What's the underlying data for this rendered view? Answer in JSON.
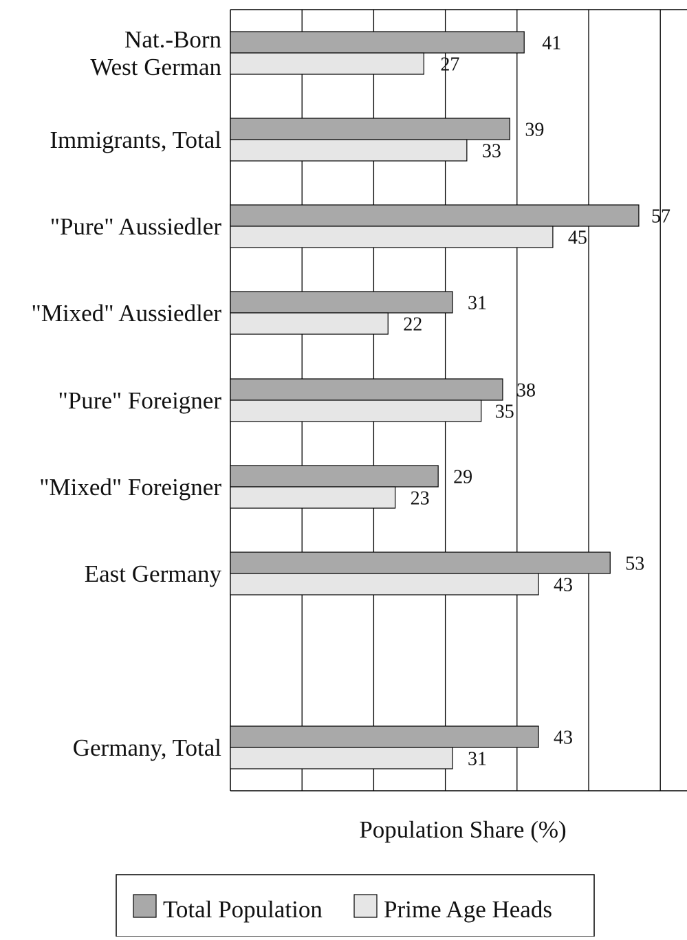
{
  "chart_data": {
    "type": "bar",
    "orientation": "horizontal",
    "categories": [
      "Nat.-Born\nWest German",
      "Immigrants, Total",
      "\"Pure\" Aussiedler",
      "\"Mixed\" Aussiedler",
      "\"Pure\" Foreigner",
      "\"Mixed\" Foreigner",
      "East Germany",
      "Germany, Total"
    ],
    "series": [
      {
        "name": "Total Population",
        "values": [
          41,
          39,
          57,
          31,
          38,
          29,
          53,
          43
        ]
      },
      {
        "name": "Prime Age Heads",
        "values": [
          27,
          33,
          45,
          22,
          35,
          23,
          43,
          31
        ]
      }
    ],
    "xlabel": "Population Share (%)",
    "ylabel": "",
    "title": "",
    "xlim": [
      0,
      60
    ],
    "grid": "vertical",
    "legend": "bottom",
    "colors": {
      "Total Population": "#a9a9a9",
      "Prime Age Heads": "#e6e6e6"
    }
  }
}
